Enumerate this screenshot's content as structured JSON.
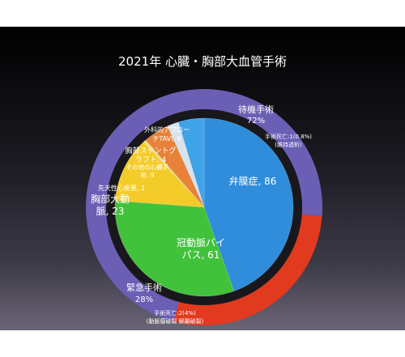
{
  "title": "2021年  心臓・胸部大血管手術",
  "colors": {
    "elective": "#6a5fb4",
    "emergency": "#e13a1e",
    "valve": "#2f8ddb",
    "cabg": "#42c23c",
    "aorta": "#f4cc2a",
    "congenital": "#f2e17c",
    "other": "#e8823a",
    "stent": "#d9e3ee",
    "tavi": "#3fa3e8"
  },
  "chart_data": [
    {
      "type": "pie",
      "role": "outer-ring",
      "categories": [
        "待機手術",
        "緊急手術"
      ],
      "values": [
        72,
        28
      ],
      "value_labels": [
        "72%",
        "28%"
      ],
      "annotations": [
        {
          "category": "待機手術",
          "lines": [
            "手術死亡:1(0.8%)",
            "(維持透析)"
          ]
        },
        {
          "category": "緊急手術",
          "lines": [
            "手術死亡:2(4%)",
            "(動脈瘤破裂  解離破裂)"
          ]
        }
      ]
    },
    {
      "type": "pie",
      "role": "inner-pie",
      "categories": [
        "弁膜症",
        "冠動脈バイパス",
        "胸部大動脈",
        "先天性心疾患",
        "その他の心臓手術",
        "胸部ステントグラフト",
        "外科的アプローチTAVI"
      ],
      "values": [
        86,
        61,
        23,
        1,
        9,
        4,
        9
      ],
      "labels": [
        {
          "lines": [
            "弁膜症, 86"
          ]
        },
        {
          "lines": [
            "冠動脈バイ",
            "パス, 61"
          ]
        },
        {
          "lines": [
            "胸部大動",
            "脈, 23"
          ]
        },
        {
          "lines": [
            "先天性心疾患, 1"
          ]
        },
        {
          "lines": [
            "その他の心臓手",
            "術, 9"
          ]
        },
        {
          "lines": [
            "胸部ステントグ",
            "ラフト, 4"
          ]
        },
        {
          "lines": [
            "外科的アプロー",
            "チTAVI, 9"
          ]
        }
      ]
    }
  ]
}
